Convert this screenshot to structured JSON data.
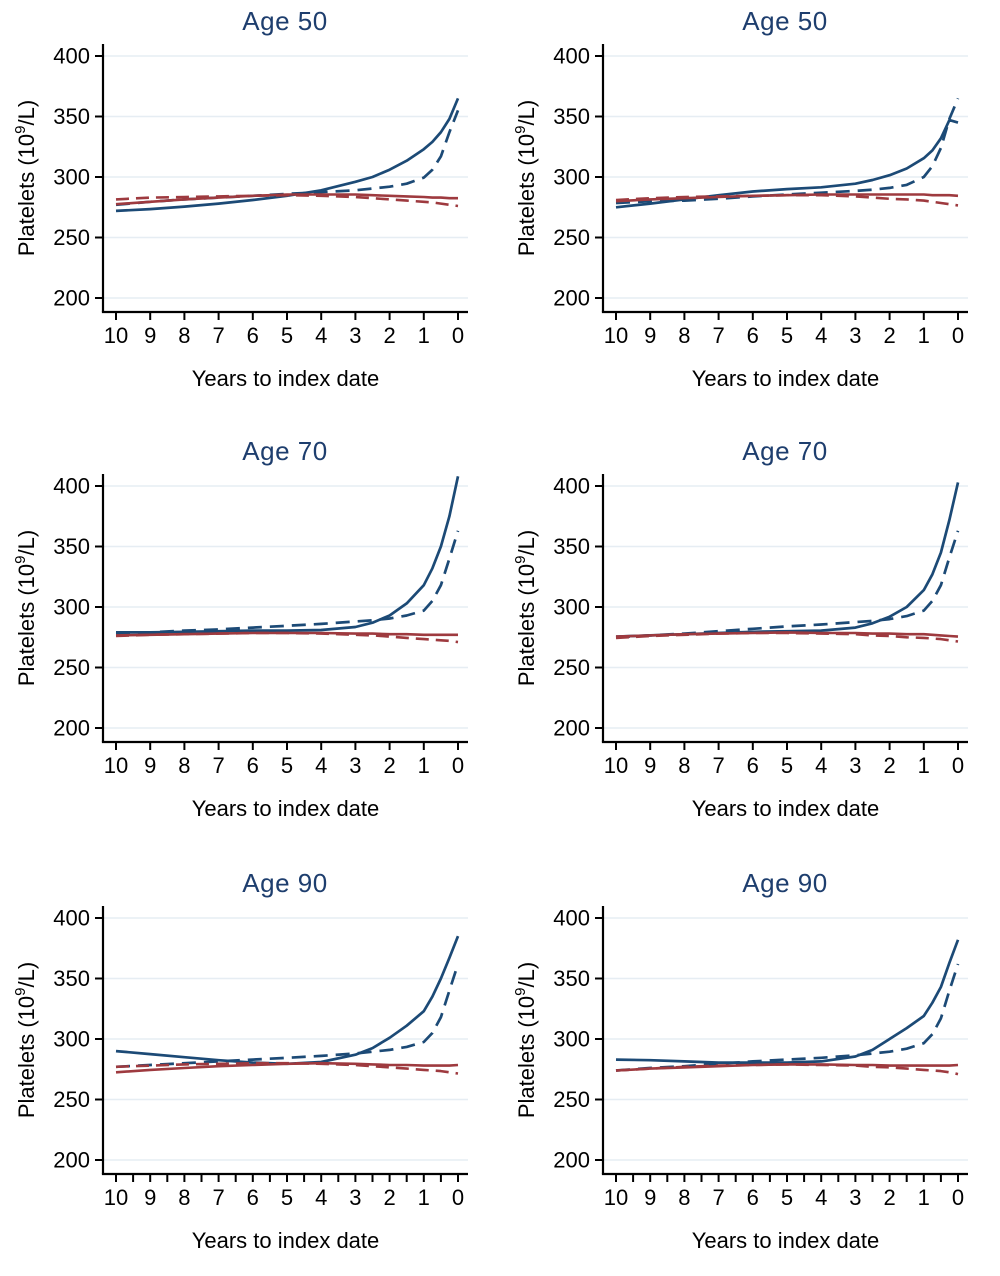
{
  "page": {
    "background": "#ffffff"
  },
  "colors": {
    "navy_line": "#1c4a76",
    "red_line": "#9e3a3f",
    "title_navy": "#1e3e6e",
    "gridline": "#e6edf3",
    "axis_black": "#000000"
  },
  "chart_data": [
    {
      "type": "line",
      "position": "top-left",
      "title": "Age 50",
      "xlabel": "Years to index date",
      "ylabel": {
        "pre": "Platelets (10",
        "sup": "9",
        "post": "/L)"
      },
      "x_ticks": [
        10,
        9,
        8,
        7,
        6,
        5,
        4,
        3,
        2,
        1,
        0
      ],
      "y_ticks": [
        200,
        250,
        300,
        350,
        400
      ],
      "ylim": [
        190,
        410
      ],
      "x_axis_reversed": true,
      "x_minor_ticks": false,
      "grid": true,
      "legend": "none",
      "x": [
        10,
        9,
        8,
        7,
        6,
        5,
        4,
        3,
        2.5,
        2,
        1.5,
        1,
        0.75,
        0.5,
        0.25,
        0
      ],
      "series": [
        {
          "name": "navy-dashed",
          "style": "dashed",
          "color": "#1c4a76",
          "values": [
            277,
            279.5,
            281.5,
            283,
            284.5,
            286,
            287.5,
            289,
            290.5,
            292,
            294.5,
            299.5,
            306,
            317,
            337,
            355
          ]
        },
        {
          "name": "navy-solid",
          "style": "solid",
          "color": "#1c4a76",
          "values": [
            272,
            273.5,
            275.5,
            278,
            281,
            284.5,
            289,
            296,
            300,
            306,
            313.5,
            323,
            329,
            337,
            348,
            365
          ]
        },
        {
          "name": "red-solid",
          "style": "solid",
          "color": "#9e3a3f",
          "values": [
            277.5,
            279.5,
            281.5,
            283,
            284.5,
            285.5,
            285.5,
            285.5,
            285,
            284.5,
            284,
            283.5,
            283,
            283,
            282.5,
            282.5
          ]
        },
        {
          "name": "red-dashed",
          "style": "dashed",
          "color": "#9e3a3f",
          "values": [
            281.5,
            283,
            283.5,
            284,
            284.5,
            285,
            284.5,
            283.5,
            282.5,
            281.5,
            280.5,
            279.5,
            279,
            278,
            277,
            276
          ]
        }
      ]
    },
    {
      "type": "line",
      "position": "top-right",
      "title": "Age 50",
      "xlabel": "Years to index date",
      "ylabel": {
        "pre": "Platelets (10",
        "sup": "9",
        "post": "/L)"
      },
      "x_ticks": [
        10,
        9,
        8,
        7,
        6,
        5,
        4,
        3,
        2,
        1,
        0
      ],
      "y_ticks": [
        200,
        250,
        300,
        350,
        400
      ],
      "ylim": [
        190,
        410
      ],
      "x_axis_reversed": true,
      "x_minor_ticks": false,
      "grid": true,
      "legend": "none",
      "x": [
        10,
        9,
        8,
        7,
        6,
        5,
        4,
        3,
        2.5,
        2,
        1.5,
        1,
        0.75,
        0.5,
        0.25,
        0
      ],
      "series": [
        {
          "name": "navy-dashed",
          "style": "dashed",
          "color": "#1c4a76",
          "values": [
            278.5,
            280,
            280.5,
            282,
            284,
            285.5,
            287,
            288.5,
            289.5,
            291,
            293.5,
            300,
            309,
            324,
            348,
            365
          ]
        },
        {
          "name": "navy-solid",
          "style": "solid",
          "color": "#1c4a76",
          "values": [
            275,
            278,
            281.5,
            285,
            288,
            290,
            291.5,
            294.5,
            297.5,
            301.5,
            307,
            315.5,
            322,
            332,
            347,
            345
          ]
        },
        {
          "name": "red-solid",
          "style": "solid",
          "color": "#9e3a3f",
          "values": [
            280,
            281.5,
            282.5,
            283.5,
            284.5,
            285,
            285.5,
            285.5,
            285.5,
            285.5,
            285.5,
            285.5,
            285,
            285,
            285,
            284.5
          ]
        },
        {
          "name": "red-dashed",
          "style": "dashed",
          "color": "#9e3a3f",
          "values": [
            281,
            282.5,
            283.5,
            284,
            284.5,
            285,
            285,
            284,
            283,
            282,
            281.5,
            280.5,
            279.5,
            278.5,
            277.5,
            276.5
          ]
        }
      ]
    },
    {
      "type": "line",
      "position": "middle-left",
      "title": "Age 70",
      "xlabel": "Years to index date",
      "ylabel": {
        "pre": "Platelets (10",
        "sup": "9",
        "post": "/L)"
      },
      "x_ticks": [
        10,
        9,
        8,
        7,
        6,
        5,
        4,
        3,
        2,
        1,
        0
      ],
      "y_ticks": [
        200,
        250,
        300,
        350,
        400
      ],
      "ylim": [
        190,
        410
      ],
      "x_axis_reversed": true,
      "x_minor_ticks": false,
      "grid": true,
      "legend": "none",
      "x": [
        10,
        9,
        8,
        7,
        6,
        5,
        4,
        3,
        2.5,
        2,
        1.5,
        1,
        0.75,
        0.5,
        0.25,
        0
      ],
      "series": [
        {
          "name": "navy-dashed",
          "style": "dashed",
          "color": "#1c4a76",
          "values": [
            278,
            279,
            280.5,
            281.5,
            283,
            284.5,
            286,
            288,
            289,
            290.5,
            293,
            297,
            305,
            318,
            340,
            363
          ]
        },
        {
          "name": "navy-solid",
          "style": "solid",
          "color": "#1c4a76",
          "values": [
            279,
            279,
            279.5,
            280,
            280.5,
            280.5,
            281,
            283.5,
            287,
            293,
            303,
            318,
            332,
            350,
            375,
            408
          ]
        },
        {
          "name": "red-solid",
          "style": "solid",
          "color": "#9e3a3f",
          "values": [
            276.5,
            277,
            277.5,
            278,
            278.5,
            278.5,
            278.5,
            278,
            278,
            277.5,
            277.5,
            277,
            277,
            277,
            277,
            277
          ]
        },
        {
          "name": "red-dashed",
          "style": "dashed",
          "color": "#9e3a3f",
          "values": [
            276,
            277,
            277.5,
            278,
            278.5,
            278.5,
            278,
            277,
            276.5,
            275.5,
            274.5,
            273.5,
            273,
            272.5,
            272,
            271
          ]
        }
      ]
    },
    {
      "type": "line",
      "position": "middle-right",
      "title": "Age 70",
      "xlabel": "Years to index date",
      "ylabel": {
        "pre": "Platelets (10",
        "sup": "9",
        "post": "/L)"
      },
      "x_ticks": [
        10,
        9,
        8,
        7,
        6,
        5,
        4,
        3,
        2,
        1,
        0
      ],
      "y_ticks": [
        200,
        250,
        300,
        350,
        400
      ],
      "ylim": [
        190,
        410
      ],
      "x_axis_reversed": true,
      "x_minor_ticks": false,
      "grid": true,
      "legend": "none",
      "x": [
        10,
        9,
        8,
        7,
        6,
        5,
        4,
        3,
        2.5,
        2,
        1.5,
        1,
        0.75,
        0.5,
        0.25,
        0
      ],
      "series": [
        {
          "name": "navy-dashed",
          "style": "dashed",
          "color": "#1c4a76",
          "values": [
            275,
            276.5,
            278,
            280,
            282,
            284,
            285.5,
            287.5,
            288.5,
            290,
            292.5,
            297,
            305,
            318,
            341,
            363
          ]
        },
        {
          "name": "navy-solid",
          "style": "solid",
          "color": "#1c4a76",
          "values": [
            275.5,
            276.5,
            277.5,
            278.5,
            279.5,
            280,
            280.5,
            283,
            286.5,
            292,
            300,
            314,
            327,
            345,
            372,
            403
          ]
        },
        {
          "name": "red-solid",
          "style": "solid",
          "color": "#9e3a3f",
          "values": [
            275.5,
            276.5,
            277.5,
            278,
            278.5,
            279,
            278.5,
            278.5,
            278,
            278,
            277.5,
            277.5,
            277,
            276.5,
            276,
            275.5
          ]
        },
        {
          "name": "red-dashed",
          "style": "dashed",
          "color": "#9e3a3f",
          "values": [
            274.5,
            276,
            277,
            278,
            278.5,
            278.5,
            278,
            277.5,
            276.5,
            276,
            275,
            274.5,
            274,
            273.5,
            272.5,
            271.5
          ]
        }
      ]
    },
    {
      "type": "line",
      "position": "bottom-left",
      "title": "Age 90",
      "xlabel": "Years to index date",
      "ylabel": {
        "pre": "Platelets (10",
        "sup": "9",
        "post": "/L)"
      },
      "x_ticks": [
        10,
        9,
        8,
        7,
        6,
        5,
        4,
        3,
        2,
        1,
        0
      ],
      "y_ticks": [
        200,
        250,
        300,
        350,
        400
      ],
      "ylim": [
        190,
        410
      ],
      "x_axis_reversed": true,
      "x_minor_ticks": true,
      "grid": true,
      "legend": "none",
      "x": [
        10,
        9,
        8,
        7,
        6,
        5,
        4,
        3,
        2.5,
        2,
        1.5,
        1,
        0.75,
        0.5,
        0.25,
        0
      ],
      "series": [
        {
          "name": "navy-dashed",
          "style": "dashed",
          "color": "#1c4a76",
          "values": [
            277,
            278.5,
            280,
            281.5,
            283,
            284.5,
            286,
            288,
            289.5,
            291,
            293.5,
            297.5,
            305,
            318,
            340,
            362
          ]
        },
        {
          "name": "navy-solid",
          "style": "solid",
          "color": "#1c4a76",
          "values": [
            290,
            287.5,
            285,
            282.5,
            280.5,
            279.5,
            281,
            287,
            292.5,
            301,
            311,
            323,
            335,
            350,
            367,
            385
          ]
        },
        {
          "name": "red-solid",
          "style": "solid",
          "color": "#9e3a3f",
          "values": [
            272.5,
            274.5,
            276,
            277.5,
            278.5,
            279.5,
            280,
            279.5,
            279,
            278.5,
            278.5,
            278,
            278,
            278,
            278,
            278.5
          ]
        },
        {
          "name": "red-dashed",
          "style": "dashed",
          "color": "#9e3a3f",
          "values": [
            277,
            278,
            279,
            279.5,
            280,
            280,
            279.5,
            278.5,
            277.5,
            276.5,
            275.5,
            274.5,
            274,
            273.5,
            272.5,
            271.5
          ]
        }
      ]
    },
    {
      "type": "line",
      "position": "bottom-right",
      "title": "Age 90",
      "xlabel": "Years to index date",
      "ylabel": {
        "pre": "Platelets (10",
        "sup": "9",
        "post": "/L)"
      },
      "x_ticks": [
        10,
        9,
        8,
        7,
        6,
        5,
        4,
        3,
        2,
        1,
        0
      ],
      "y_ticks": [
        200,
        250,
        300,
        350,
        400
      ],
      "ylim": [
        190,
        410
      ],
      "x_axis_reversed": true,
      "x_minor_ticks": true,
      "grid": true,
      "legend": "none",
      "x": [
        10,
        9,
        8,
        7,
        6,
        5,
        4,
        3,
        2.5,
        2,
        1.5,
        1,
        0.75,
        0.5,
        0.25,
        0
      ],
      "series": [
        {
          "name": "navy-dashed",
          "style": "dashed",
          "color": "#1c4a76",
          "values": [
            274,
            276,
            277.5,
            279.5,
            281.5,
            283,
            284.5,
            286.5,
            288,
            289.5,
            292,
            296.5,
            304,
            317,
            340,
            362
          ]
        },
        {
          "name": "navy-solid",
          "style": "solid",
          "color": "#1c4a76",
          "values": [
            283,
            282.5,
            281.5,
            280.5,
            280.5,
            280.5,
            281.5,
            285.5,
            291,
            300,
            309,
            319,
            330,
            343,
            363,
            382
          ]
        },
        {
          "name": "red-solid",
          "style": "solid",
          "color": "#9e3a3f",
          "values": [
            274,
            275.5,
            276.5,
            277.5,
            278.5,
            279,
            279,
            278.5,
            278.5,
            278,
            278,
            278,
            278,
            278,
            278,
            278.5
          ]
        },
        {
          "name": "red-dashed",
          "style": "dashed",
          "color": "#9e3a3f",
          "values": [
            274,
            275.5,
            277,
            278,
            278.5,
            279,
            278.5,
            278,
            277,
            276.5,
            275.5,
            274.5,
            274,
            273.5,
            272.5,
            271
          ]
        }
      ]
    }
  ]
}
